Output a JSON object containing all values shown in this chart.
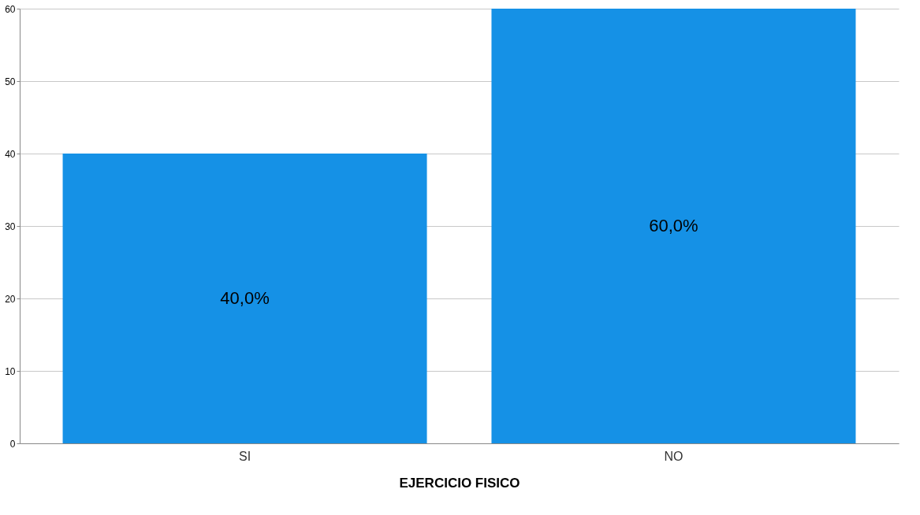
{
  "chart_data": {
    "type": "bar",
    "xlabel": "EJERCICIO FISICO",
    "categories": [
      "SI",
      "NO"
    ],
    "values": [
      40,
      60
    ],
    "value_labels": [
      "40,0%",
      "60,0%"
    ],
    "color": "#1591e6",
    "ylim": [
      0,
      60
    ],
    "yticks": [
      0,
      10,
      20,
      30,
      40,
      50,
      60
    ],
    "grid": "y"
  }
}
